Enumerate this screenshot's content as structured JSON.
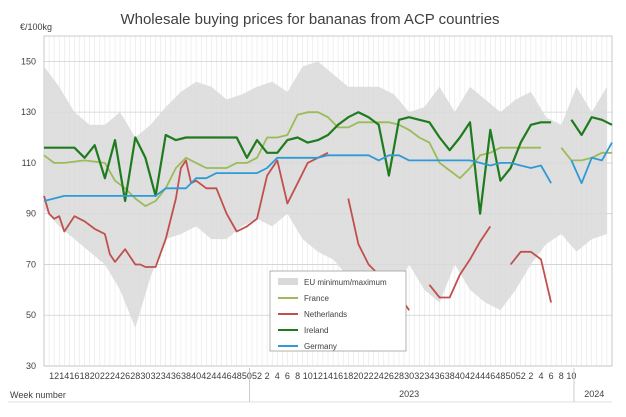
{
  "chart_data": {
    "type": "line",
    "title": "Wholesale buying prices for bananas from ACP countries",
    "ylabel": "€/100kg",
    "xlabel": "Week number",
    "ylim": [
      30,
      160
    ],
    "yticks": [
      30,
      50,
      70,
      90,
      110,
      130,
      150
    ],
    "week_ticks": [
      "12",
      "14",
      "16",
      "18",
      "20",
      "22",
      "24",
      "26",
      "28",
      "30",
      "32",
      "34",
      "36",
      "38",
      "40",
      "42",
      "44",
      "46",
      "48",
      "50",
      "52",
      "2",
      "4",
      "6",
      "8",
      "10",
      "12",
      "14",
      "16",
      "18",
      "20",
      "22",
      "24",
      "26",
      "28",
      "30",
      "32",
      "34",
      "36",
      "38",
      "40",
      "42",
      "44",
      "46",
      "48",
      "50",
      "52",
      "2",
      "4",
      "6",
      "8",
      "10"
    ],
    "year_labels": [
      "2023",
      "2024"
    ],
    "x_range": [
      0,
      112
    ],
    "grid": true,
    "legend_position": "bottom-center",
    "colors": {
      "band": "#d9d9d9",
      "France": "#9bbb59",
      "Netherlands": "#c0504d",
      "Ireland": "#1e7b1e",
      "Germany": "#2e9bd6"
    },
    "band": {
      "name": "EU minimum/maximum",
      "x": [
        0,
        3,
        6,
        9,
        12,
        15,
        18,
        21,
        24,
        27,
        30,
        33,
        36,
        39,
        42,
        45,
        48,
        51,
        54,
        57,
        60,
        63,
        66,
        69,
        72,
        75,
        78,
        81,
        84,
        87,
        90,
        93,
        96,
        99,
        102,
        105,
        108,
        111
      ],
      "min": [
        92,
        85,
        80,
        75,
        70,
        60,
        45,
        65,
        80,
        82,
        85,
        80,
        80,
        85,
        88,
        85,
        90,
        80,
        75,
        72,
        65,
        60,
        55,
        58,
        70,
        60,
        55,
        70,
        60,
        55,
        52,
        60,
        70,
        78,
        82,
        75,
        80,
        82
      ],
      "max": [
        148,
        140,
        130,
        125,
        125,
        130,
        120,
        125,
        132,
        138,
        142,
        140,
        135,
        137,
        140,
        142,
        138,
        148,
        150,
        145,
        140,
        140,
        140,
        137,
        130,
        132,
        140,
        130,
        140,
        135,
        130,
        135,
        138,
        128,
        125,
        140,
        130,
        140
      ]
    },
    "series": [
      {
        "name": "France",
        "x": [
          0,
          2,
          4,
          8,
          12,
          14,
          16,
          18,
          20,
          22,
          24,
          26,
          28,
          30,
          32,
          34,
          36,
          38,
          40,
          42,
          44,
          46,
          48,
          50,
          52,
          54,
          56,
          58,
          60,
          62,
          64,
          66,
          68,
          70,
          72,
          74,
          76,
          78,
          80,
          82,
          84,
          86,
          88,
          90,
          92,
          94,
          96,
          98,
          100,
          102,
          104,
          106,
          108,
          110,
          112
        ],
        "y": [
          113,
          110,
          110,
          111,
          110,
          103,
          100,
          96,
          93,
          95,
          100,
          108,
          112,
          110,
          108,
          108,
          108,
          110,
          110,
          112,
          120,
          120,
          121,
          129,
          130,
          130,
          128,
          124,
          124,
          126,
          126,
          126,
          126,
          125,
          123,
          120,
          118,
          110,
          107,
          104,
          108,
          113,
          114,
          116,
          116,
          116,
          116,
          116,
          null,
          116,
          111,
          111,
          112,
          114,
          114
        ]
      },
      {
        "name": "Netherlands",
        "x": [
          0,
          1,
          2,
          3,
          4,
          6,
          8,
          10,
          12,
          13,
          14,
          16,
          18,
          19,
          20,
          22,
          24,
          26,
          27,
          28,
          29,
          30,
          32,
          34,
          36,
          38,
          40,
          42,
          44,
          46,
          48,
          50,
          52,
          54,
          56,
          58,
          60,
          62,
          64,
          66,
          68,
          70,
          72,
          74,
          76,
          78,
          80,
          82,
          84,
          86,
          88,
          90,
          92,
          94,
          96,
          98,
          100
        ],
        "y": [
          97,
          90,
          88,
          89,
          83,
          89,
          87,
          84,
          82,
          74,
          71,
          76,
          70,
          70,
          69,
          69,
          80,
          96,
          108,
          111,
          102,
          103,
          100,
          100,
          90,
          83,
          85,
          88,
          105,
          111,
          94,
          102,
          110,
          112,
          114,
          null,
          96,
          78,
          70,
          66,
          62,
          58,
          52,
          null,
          62,
          57,
          57,
          66,
          72,
          79,
          85,
          null,
          70,
          75,
          75,
          72,
          55
        ]
      },
      {
        "name": "Ireland",
        "x": [
          0,
          2,
          4,
          6,
          8,
          10,
          12,
          14,
          16,
          18,
          20,
          22,
          24,
          26,
          28,
          30,
          32,
          34,
          36,
          38,
          40,
          42,
          44,
          46,
          48,
          50,
          52,
          54,
          56,
          58,
          60,
          62,
          64,
          66,
          68,
          70,
          72,
          74,
          76,
          78,
          80,
          82,
          84,
          86,
          88,
          90,
          92,
          94,
          96,
          98,
          100,
          102,
          104,
          106,
          108,
          110,
          112
        ],
        "y": [
          116,
          116,
          116,
          116,
          112,
          117,
          104,
          119,
          95,
          120,
          112,
          97,
          121,
          119,
          120,
          120,
          120,
          120,
          120,
          120,
          112,
          119,
          114,
          114,
          119,
          120,
          118,
          119,
          121,
          125,
          128,
          130,
          128,
          125,
          105,
          127,
          128,
          127,
          126,
          120,
          115,
          120,
          126,
          90,
          123,
          103,
          108,
          118,
          125,
          126,
          126,
          null,
          127,
          121,
          128,
          127,
          125
        ]
      },
      {
        "name": "Germany",
        "x": [
          0,
          2,
          4,
          6,
          8,
          10,
          12,
          14,
          16,
          18,
          20,
          22,
          24,
          26,
          28,
          30,
          32,
          34,
          36,
          38,
          40,
          42,
          44,
          46,
          48,
          50,
          52,
          54,
          56,
          58,
          60,
          62,
          64,
          66,
          68,
          70,
          72,
          74,
          76,
          78,
          80,
          82,
          84,
          86,
          88,
          90,
          92,
          94,
          96,
          98,
          100,
          102,
          104,
          106,
          108,
          110,
          112
        ],
        "y": [
          95,
          96,
          97,
          97,
          97,
          97,
          97,
          97,
          97,
          97,
          97,
          97,
          100,
          100,
          100,
          104,
          104,
          106,
          106,
          106,
          106,
          106,
          108,
          112,
          112,
          112,
          112,
          112,
          113,
          113,
          113,
          113,
          113,
          111,
          113,
          113,
          111,
          111,
          111,
          111,
          111,
          111,
          111,
          110,
          109,
          110,
          110,
          109,
          108,
          109,
          102,
          null,
          111,
          102,
          112,
          111,
          118
        ]
      }
    ]
  }
}
